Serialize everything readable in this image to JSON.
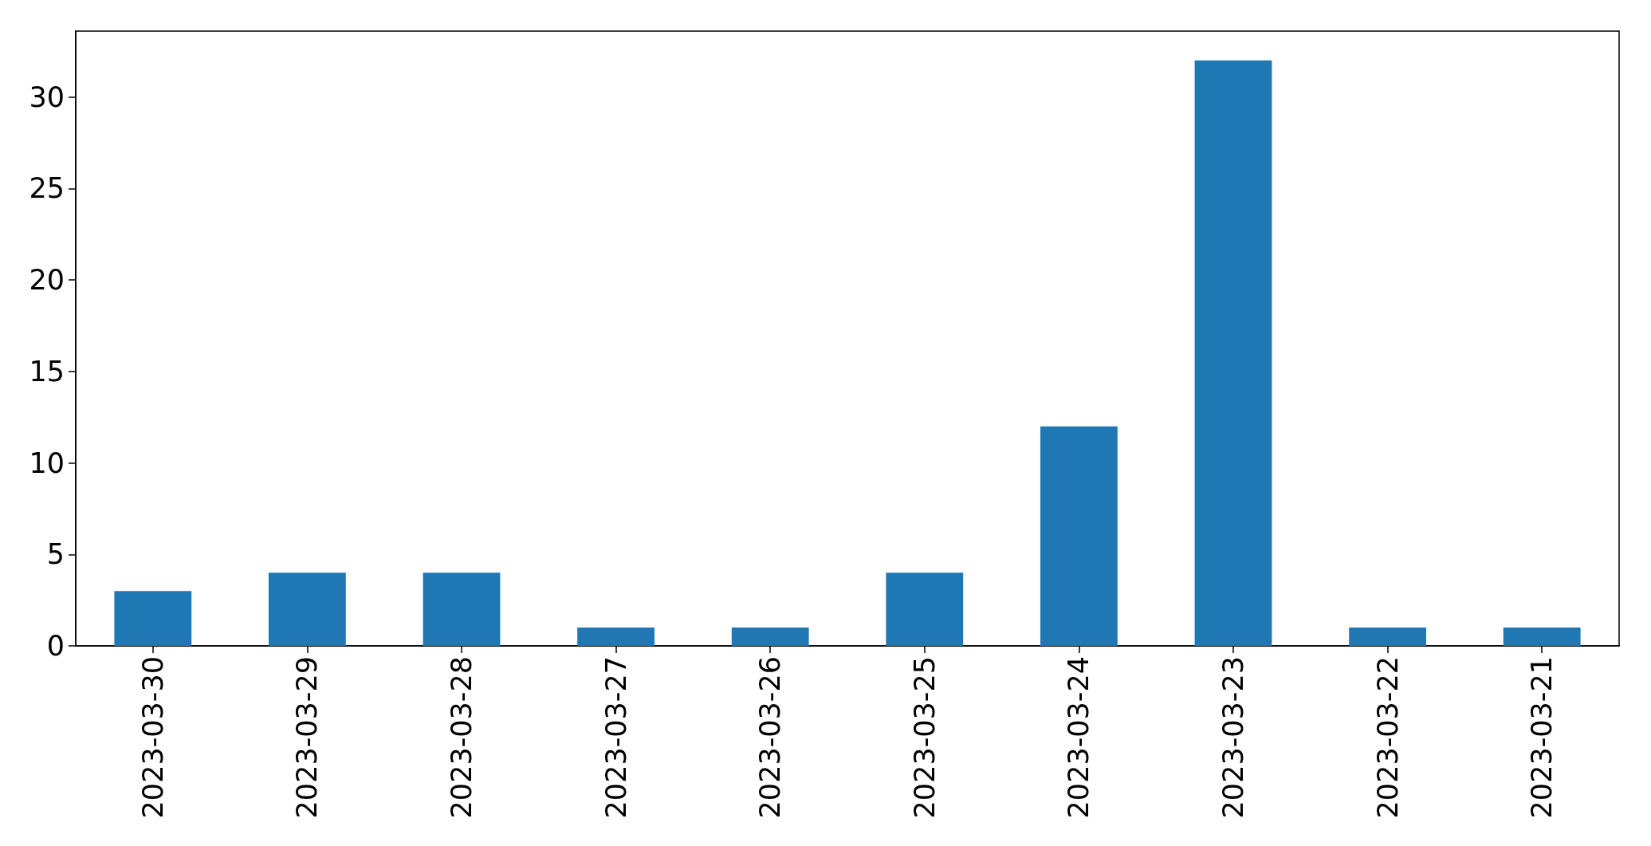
{
  "chart_data": {
    "type": "bar",
    "categories": [
      "2023-03-30",
      "2023-03-29",
      "2023-03-28",
      "2023-03-27",
      "2023-03-26",
      "2023-03-25",
      "2023-03-24",
      "2023-03-23",
      "2023-03-22",
      "2023-03-21"
    ],
    "values": [
      3,
      4,
      4,
      1,
      1,
      4,
      12,
      32,
      1,
      1
    ],
    "color": "#1f77b4",
    "ylim": [
      0,
      33.6
    ],
    "yticks": [
      0,
      5,
      10,
      15,
      20,
      25,
      30
    ],
    "grid": false
  }
}
